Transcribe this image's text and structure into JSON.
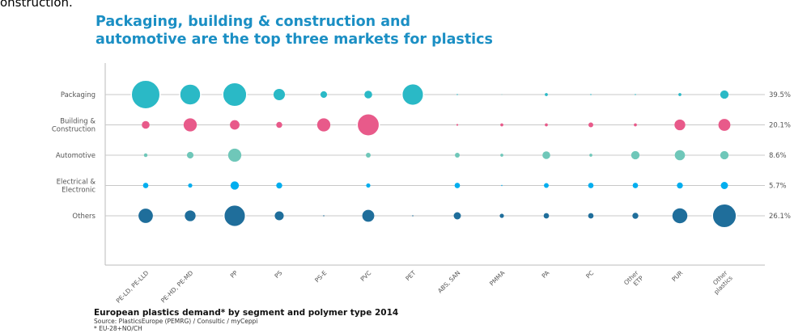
{
  "cut_text": "onstruction.",
  "title_lines": [
    "Packaging, building & construction and",
    "automotive are the top three markets for plastics"
  ],
  "footer": {
    "title": "European plastics demand* by segment and polymer type 2014",
    "source": "Source: PlasticsEurope (PEMRG) / Consultic / myCeppi",
    "note": "* EU-28+NO/CH"
  },
  "chart_data": {
    "type": "bubble",
    "title": "Packaging, building & construction and automotive are the top three markets for plastics",
    "categories": [
      "PE-LD, PE-LLD",
      "PE-HD, PE-MD",
      "PP",
      "PS",
      "PS-E",
      "PVC",
      "PET",
      "ABS, SAN",
      "PMMA",
      "PA",
      "PC",
      "Other ETP",
      "PUR",
      "Other plastics"
    ],
    "category_lines": [
      [
        "PE-LD, PE-LLD"
      ],
      [
        "PE-HD, PE-MD"
      ],
      [
        "PP"
      ],
      [
        "PS"
      ],
      [
        "PS-E"
      ],
      [
        "PVC"
      ],
      [
        "PET"
      ],
      [
        "ABS, SAN"
      ],
      [
        "PMMA"
      ],
      [
        "PA"
      ],
      [
        "PC"
      ],
      [
        "Other",
        "ETP"
      ],
      [
        "PUR"
      ],
      [
        "Other",
        "plastics"
      ]
    ],
    "series": [
      {
        "name": "Packaging",
        "name_lines": [
          "Packaging"
        ],
        "share": "39.5%",
        "color": "#2ab9c6",
        "values": [
          48,
          35,
          40,
          19,
          11,
          13,
          36,
          2,
          1,
          5,
          2,
          2,
          5,
          14
        ]
      },
      {
        "name": "Building & Construction",
        "name_lines": [
          "Building &",
          "Construction"
        ],
        "share": "20.1%",
        "color": "#e85a8a",
        "values": [
          13,
          22,
          16,
          10,
          22,
          37,
          0,
          3,
          5,
          5,
          8,
          5,
          18,
          20
        ]
      },
      {
        "name": "Automotive",
        "name_lines": [
          "Automotive"
        ],
        "share": "8.6%",
        "color": "#6fc7b9",
        "values": [
          6,
          11,
          22,
          0,
          0,
          8,
          0,
          8,
          5,
          13,
          5,
          14,
          17,
          14
        ]
      },
      {
        "name": "Electrical & Electronic",
        "name_lines": [
          "Electrical &",
          "Electronic"
        ],
        "share": "5.7%",
        "color": "#00aeef",
        "values": [
          9,
          7,
          14,
          10,
          0,
          7,
          0,
          9,
          2,
          8,
          9,
          9,
          10,
          12
        ]
      },
      {
        "name": "Others",
        "name_lines": [
          "Others"
        ],
        "share": "26.1%",
        "color": "#1f6e9b",
        "values": [
          24,
          18,
          36,
          15,
          2,
          20,
          2,
          12,
          7,
          9,
          9,
          10,
          25,
          40
        ]
      }
    ],
    "xlabel": "",
    "ylabel": "",
    "legend": "none",
    "grid": false
  }
}
